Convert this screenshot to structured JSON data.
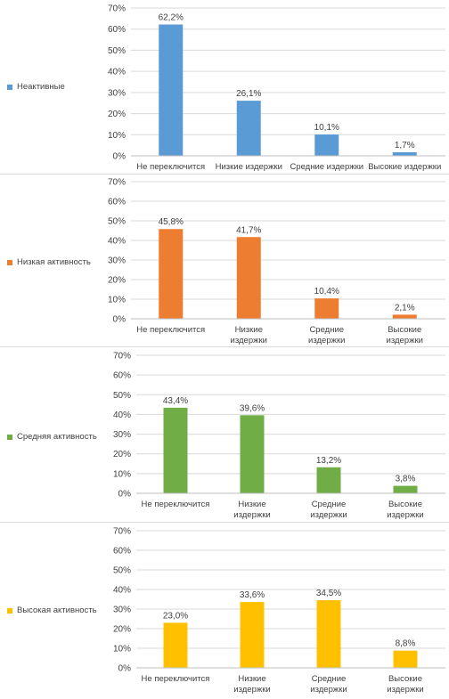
{
  "chart_data": [
    {
      "type": "bar",
      "series_name": "Неактивные",
      "color": "#5b9bd5",
      "categories": [
        "Не переключится",
        "Низкие издержки",
        "Средние издержки",
        "Высокие издержки"
      ],
      "values": [
        62.2,
        26.1,
        10.1,
        1.7
      ],
      "data_labels": [
        "62,2%",
        "26,1%",
        "10,1%",
        "1,7%"
      ],
      "ylim": [
        0,
        70
      ],
      "yticks": [
        "0%",
        "10%",
        "20%",
        "30%",
        "40%",
        "50%",
        "60%",
        "70%"
      ],
      "grid": true
    },
    {
      "type": "bar",
      "series_name": "Низкая активность",
      "color": "#ed7d31",
      "categories": [
        "Не переключится",
        "Низкие издержки",
        "Средние издержки",
        "Высокие издержки"
      ],
      "values": [
        45.8,
        41.7,
        10.4,
        2.1
      ],
      "data_labels": [
        "45,8%",
        "41,7%",
        "10,4%",
        "2,1%"
      ],
      "ylim": [
        0,
        70
      ],
      "yticks": [
        "0%",
        "10%",
        "20%",
        "30%",
        "40%",
        "50%",
        "60%",
        "70%"
      ],
      "grid": true
    },
    {
      "type": "bar",
      "series_name": "Средняя активность",
      "color": "#70ad47",
      "categories": [
        "Не переключится",
        "Низкие издержки",
        "Средние издержки",
        "Высокие издержки"
      ],
      "values": [
        43.4,
        39.6,
        13.2,
        3.8
      ],
      "data_labels": [
        "43,4%",
        "39,6%",
        "13,2%",
        "3,8%"
      ],
      "ylim": [
        0,
        70
      ],
      "yticks": [
        "0%",
        "10%",
        "20%",
        "30%",
        "40%",
        "50%",
        "60%",
        "70%"
      ],
      "grid": true
    },
    {
      "type": "bar",
      "series_name": "Высокая активность",
      "color": "#ffc000",
      "categories": [
        "Не переключится",
        "Низкие издержки",
        "Средние издержки",
        "Высокие издержки"
      ],
      "values": [
        23.0,
        33.6,
        34.5,
        8.8
      ],
      "data_labels": [
        "23,0%",
        "33,6%",
        "34,5%",
        "8,8%"
      ],
      "ylim": [
        0,
        70
      ],
      "yticks": [
        "0%",
        "10%",
        "20%",
        "30%",
        "40%",
        "50%",
        "60%",
        "70%"
      ],
      "grid": true
    }
  ]
}
